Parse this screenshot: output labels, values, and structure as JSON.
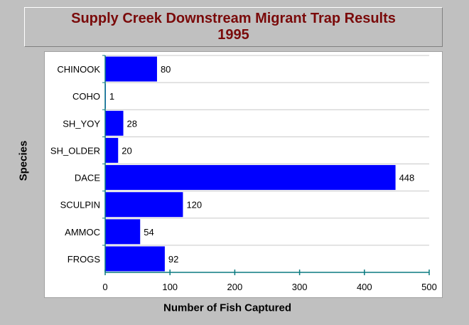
{
  "chart_data": {
    "type": "bar",
    "orientation": "horizontal",
    "title": "Supply Creek Downstream Migrant Trap Results",
    "subtitle": "1995",
    "xlabel": "Number of Fish Captured",
    "ylabel": "Species",
    "categories": [
      "CHINOOK",
      "COHO",
      "SH_YOY",
      "SH_OLDER",
      "DACE",
      "SCULPIN",
      "AMMOC",
      "FROGS"
    ],
    "values": [
      80,
      1,
      28,
      20,
      448,
      120,
      54,
      92
    ],
    "value_labels": [
      "80",
      "1",
      "28",
      "20",
      "448",
      "120",
      "54",
      "92"
    ],
    "xlim": [
      0,
      500
    ],
    "xticks": [
      0,
      100,
      200,
      300,
      400,
      500
    ],
    "xtick_labels": [
      "0",
      "100",
      "200",
      "300",
      "400",
      "500"
    ],
    "grid": "horizontal",
    "legend": "none",
    "colors": {
      "bar": "#0000ff",
      "title": "#7a0a0a",
      "axis": "#0a7a80",
      "grid": "#c8c8c8",
      "panel": "#ffffff",
      "background": "#c0c0c0"
    }
  }
}
